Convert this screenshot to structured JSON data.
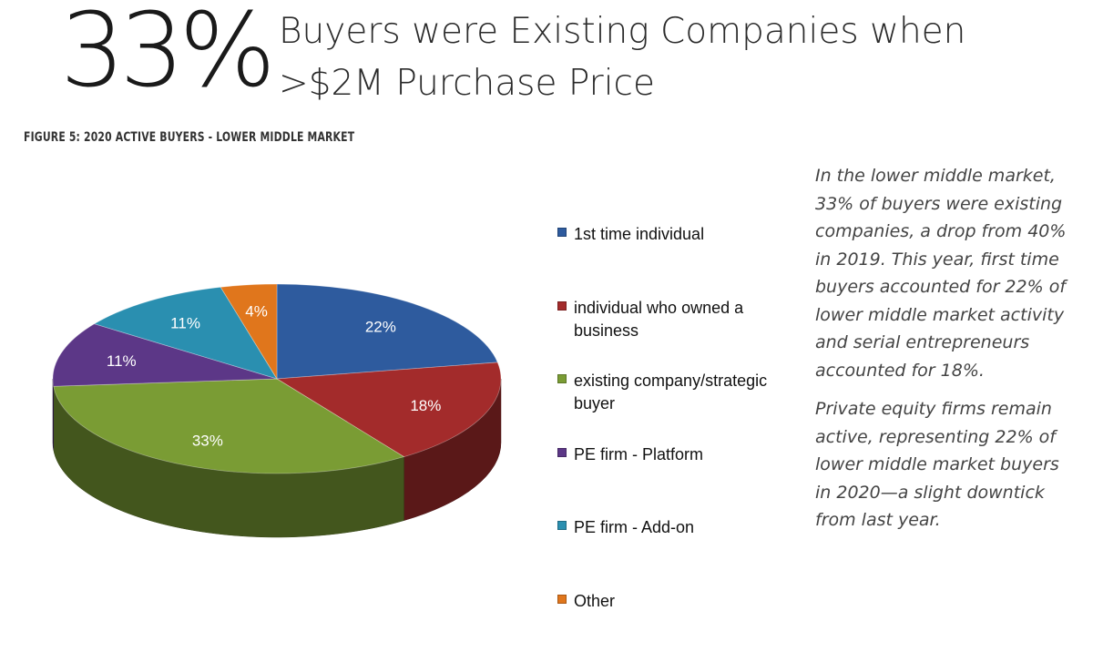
{
  "header": {
    "stat": "33%",
    "headline_line1": "Buyers were Existing Companies when",
    "headline_line2": ">$2M Purchase  Price"
  },
  "figure_caption": "FIGURE 5: 2020 ACTIVE BUYERS - LOWER MIDDLE MARKET",
  "chart_data": {
    "type": "pie",
    "title": "",
    "categories": [
      "1st time individual",
      "individual who owned a business",
      "existing company/strategic buyer",
      "PE firm - Platform",
      "PE firm - Add-on",
      "Other"
    ],
    "legend_lines": [
      [
        "1st time individual"
      ],
      [
        "individual who owned a",
        "business"
      ],
      [
        "existing company/strategic",
        "buyer"
      ],
      [
        "PE firm - Platform"
      ],
      [
        "PE firm - Add-on"
      ],
      [
        "Other"
      ]
    ],
    "values": [
      22,
      18,
      33,
      11,
      11,
      4
    ],
    "labels": [
      "22%",
      "18%",
      "33%",
      "11%",
      "11%",
      "4%"
    ],
    "colors": [
      "#2e5b9e",
      "#a32b2b",
      "#7a9c34",
      "#5c3787",
      "#2a8fb0",
      "#e0761c"
    ],
    "style": "3d",
    "legend_placement": "right"
  },
  "side_text": {
    "paragraph1": "In the lower middle market, 33% of buyers were existing companies, a drop from 40% in 2019. This year, first time buyers accounted for 22% of lower middle market activity and serial entrepreneurs accounted for 18%.",
    "paragraph2": "Private equity firms remain active, representing 22% of lower middle market buyers in 2020—a slight downtick from last year."
  }
}
